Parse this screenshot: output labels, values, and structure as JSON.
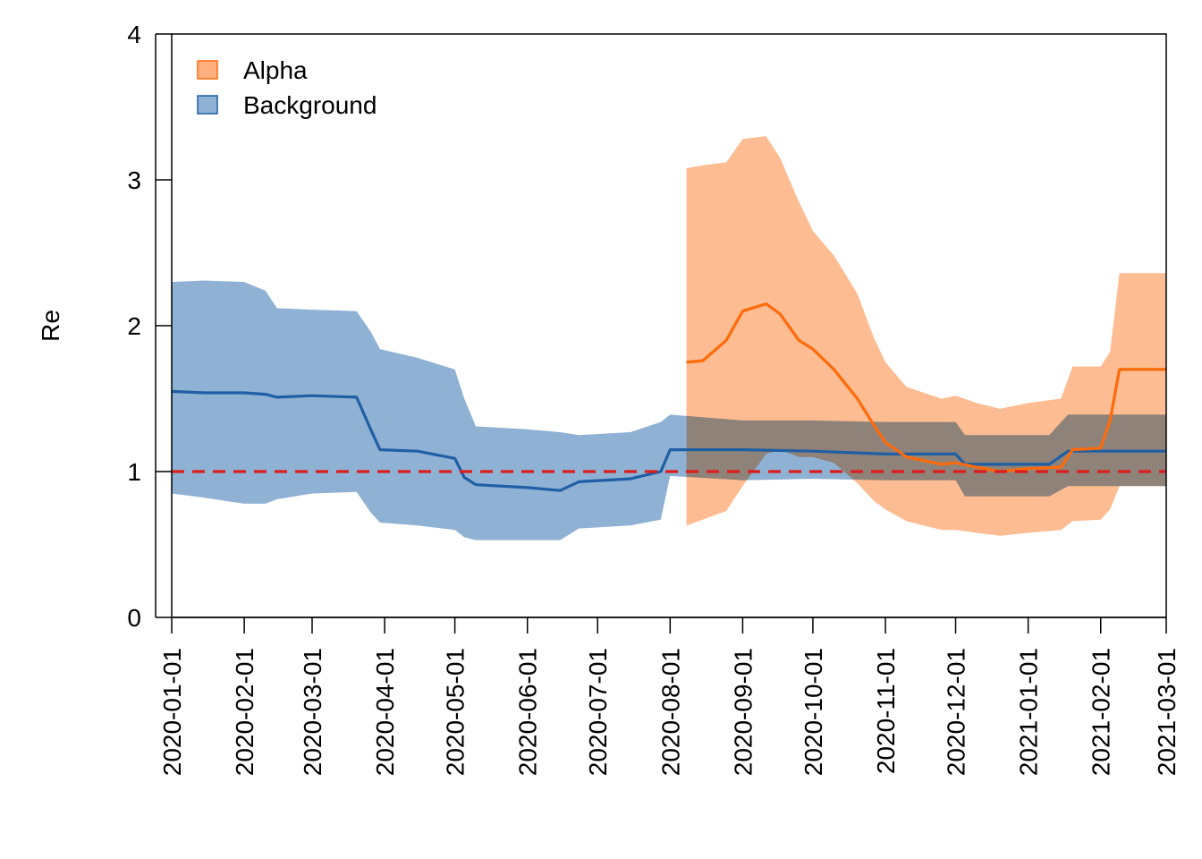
{
  "chart_data": {
    "type": "area",
    "title": "",
    "xlabel": "",
    "ylabel": "Re",
    "ylim": [
      0,
      4
    ],
    "xlim": [
      "2020-01-01",
      "2021-03-01"
    ],
    "x_ticks": [
      "2020-01-01",
      "2020-02-01",
      "2020-03-01",
      "2020-04-01",
      "2020-05-01",
      "2020-06-01",
      "2020-07-01",
      "2020-08-01",
      "2020-09-01",
      "2020-10-01",
      "2020-11-01",
      "2020-12-01",
      "2021-01-01",
      "2021-02-01",
      "2021-03-01"
    ],
    "y_ticks": [
      0,
      1,
      2,
      3,
      4
    ],
    "legend_position": "top-left",
    "reference_line": {
      "y": 1,
      "color": "#dd1c1c",
      "style": "dashed"
    },
    "series": [
      {
        "name": "Background",
        "line_color": "#1f5fa4",
        "fill_color": "#8fb1d4",
        "points": [
          {
            "x": "2020-01-01",
            "median": 1.55,
            "lower": 0.85,
            "upper": 2.3
          },
          {
            "x": "2020-01-15",
            "median": 1.54,
            "lower": 0.82,
            "upper": 2.31
          },
          {
            "x": "2020-02-01",
            "median": 1.54,
            "lower": 0.78,
            "upper": 2.3
          },
          {
            "x": "2020-02-10",
            "median": 1.53,
            "lower": 0.78,
            "upper": 2.24
          },
          {
            "x": "2020-02-15",
            "median": 1.51,
            "lower": 0.81,
            "upper": 2.12
          },
          {
            "x": "2020-03-01",
            "median": 1.52,
            "lower": 0.85,
            "upper": 2.11
          },
          {
            "x": "2020-03-20",
            "median": 1.51,
            "lower": 0.86,
            "upper": 2.1
          },
          {
            "x": "2020-03-26",
            "median": 1.29,
            "lower": 0.72,
            "upper": 1.96
          },
          {
            "x": "2020-03-30",
            "median": 1.15,
            "lower": 0.65,
            "upper": 1.84
          },
          {
            "x": "2020-04-15",
            "median": 1.14,
            "lower": 0.63,
            "upper": 1.78
          },
          {
            "x": "2020-05-01",
            "median": 1.09,
            "lower": 0.6,
            "upper": 1.7
          },
          {
            "x": "2020-05-05",
            "median": 0.96,
            "lower": 0.55,
            "upper": 1.5
          },
          {
            "x": "2020-05-10",
            "median": 0.91,
            "lower": 0.53,
            "upper": 1.31
          },
          {
            "x": "2020-06-01",
            "median": 0.89,
            "lower": 0.53,
            "upper": 1.29
          },
          {
            "x": "2020-06-15",
            "median": 0.87,
            "lower": 0.53,
            "upper": 1.27
          },
          {
            "x": "2020-06-23",
            "median": 0.93,
            "lower": 0.61,
            "upper": 1.25
          },
          {
            "x": "2020-07-15",
            "median": 0.95,
            "lower": 0.63,
            "upper": 1.27
          },
          {
            "x": "2020-07-28",
            "median": 1.0,
            "lower": 0.67,
            "upper": 1.34
          },
          {
            "x": "2020-08-01",
            "median": 1.15,
            "lower": 0.97,
            "upper": 1.39
          },
          {
            "x": "2020-09-01",
            "median": 1.15,
            "lower": 0.94,
            "upper": 1.35
          },
          {
            "x": "2020-10-01",
            "median": 1.14,
            "lower": 0.95,
            "upper": 1.35
          },
          {
            "x": "2020-11-01",
            "median": 1.12,
            "lower": 0.94,
            "upper": 1.34
          },
          {
            "x": "2020-12-01",
            "median": 1.12,
            "lower": 0.94,
            "upper": 1.34
          },
          {
            "x": "2020-12-05",
            "median": 1.05,
            "lower": 0.83,
            "upper": 1.25
          },
          {
            "x": "2021-01-10",
            "median": 1.05,
            "lower": 0.83,
            "upper": 1.25
          },
          {
            "x": "2021-01-18",
            "median": 1.14,
            "lower": 0.9,
            "upper": 1.39
          },
          {
            "x": "2021-02-01",
            "median": 1.14,
            "lower": 0.9,
            "upper": 1.39
          },
          {
            "x": "2021-02-10",
            "median": 1.14,
            "lower": 0.9,
            "upper": 1.39
          },
          {
            "x": "2021-03-01",
            "median": 1.14,
            "lower": 0.9,
            "upper": 1.39
          }
        ]
      },
      {
        "name": "Alpha",
        "line_color": "#ff6a0a",
        "fill_color": "#fdb07e",
        "points": [
          {
            "x": "2020-08-08",
            "median": 1.75,
            "lower": 0.63,
            "upper": 3.08
          },
          {
            "x": "2020-08-15",
            "median": 1.76,
            "lower": 0.67,
            "upper": 3.1
          },
          {
            "x": "2020-08-25",
            "median": 1.9,
            "lower": 0.73,
            "upper": 3.12
          },
          {
            "x": "2020-09-01",
            "median": 2.1,
            "lower": 0.9,
            "upper": 3.28
          },
          {
            "x": "2020-09-11",
            "median": 2.15,
            "lower": 1.12,
            "upper": 3.3
          },
          {
            "x": "2020-09-17",
            "median": 2.08,
            "lower": 1.15,
            "upper": 3.15
          },
          {
            "x": "2020-09-25",
            "median": 1.9,
            "lower": 1.1,
            "upper": 2.85
          },
          {
            "x": "2020-10-01",
            "median": 1.84,
            "lower": 1.1,
            "upper": 2.65
          },
          {
            "x": "2020-10-10",
            "median": 1.7,
            "lower": 1.06,
            "upper": 2.48
          },
          {
            "x": "2020-10-20",
            "median": 1.5,
            "lower": 0.92,
            "upper": 2.22
          },
          {
            "x": "2020-10-27",
            "median": 1.32,
            "lower": 0.8,
            "upper": 1.92
          },
          {
            "x": "2020-11-01",
            "median": 1.2,
            "lower": 0.74,
            "upper": 1.75
          },
          {
            "x": "2020-11-10",
            "median": 1.1,
            "lower": 0.66,
            "upper": 1.58
          },
          {
            "x": "2020-11-25",
            "median": 1.05,
            "lower": 0.6,
            "upper": 1.5
          },
          {
            "x": "2020-12-01",
            "median": 1.06,
            "lower": 0.6,
            "upper": 1.52
          },
          {
            "x": "2020-12-10",
            "median": 1.03,
            "lower": 0.58,
            "upper": 1.47
          },
          {
            "x": "2020-12-20",
            "median": 1.0,
            "lower": 0.56,
            "upper": 1.43
          },
          {
            "x": "2021-01-01",
            "median": 1.02,
            "lower": 0.58,
            "upper": 1.47
          },
          {
            "x": "2021-01-15",
            "median": 1.03,
            "lower": 0.6,
            "upper": 1.5
          },
          {
            "x": "2021-01-20",
            "median": 1.15,
            "lower": 0.66,
            "upper": 1.72
          },
          {
            "x": "2021-02-01",
            "median": 1.16,
            "lower": 0.67,
            "upper": 1.72
          },
          {
            "x": "2021-02-05",
            "median": 1.35,
            "lower": 0.74,
            "upper": 1.82
          },
          {
            "x": "2021-02-09",
            "median": 1.7,
            "lower": 0.9,
            "upper": 2.36
          },
          {
            "x": "2021-03-01",
            "median": 1.7,
            "lower": 0.9,
            "upper": 2.36
          }
        ]
      }
    ]
  }
}
